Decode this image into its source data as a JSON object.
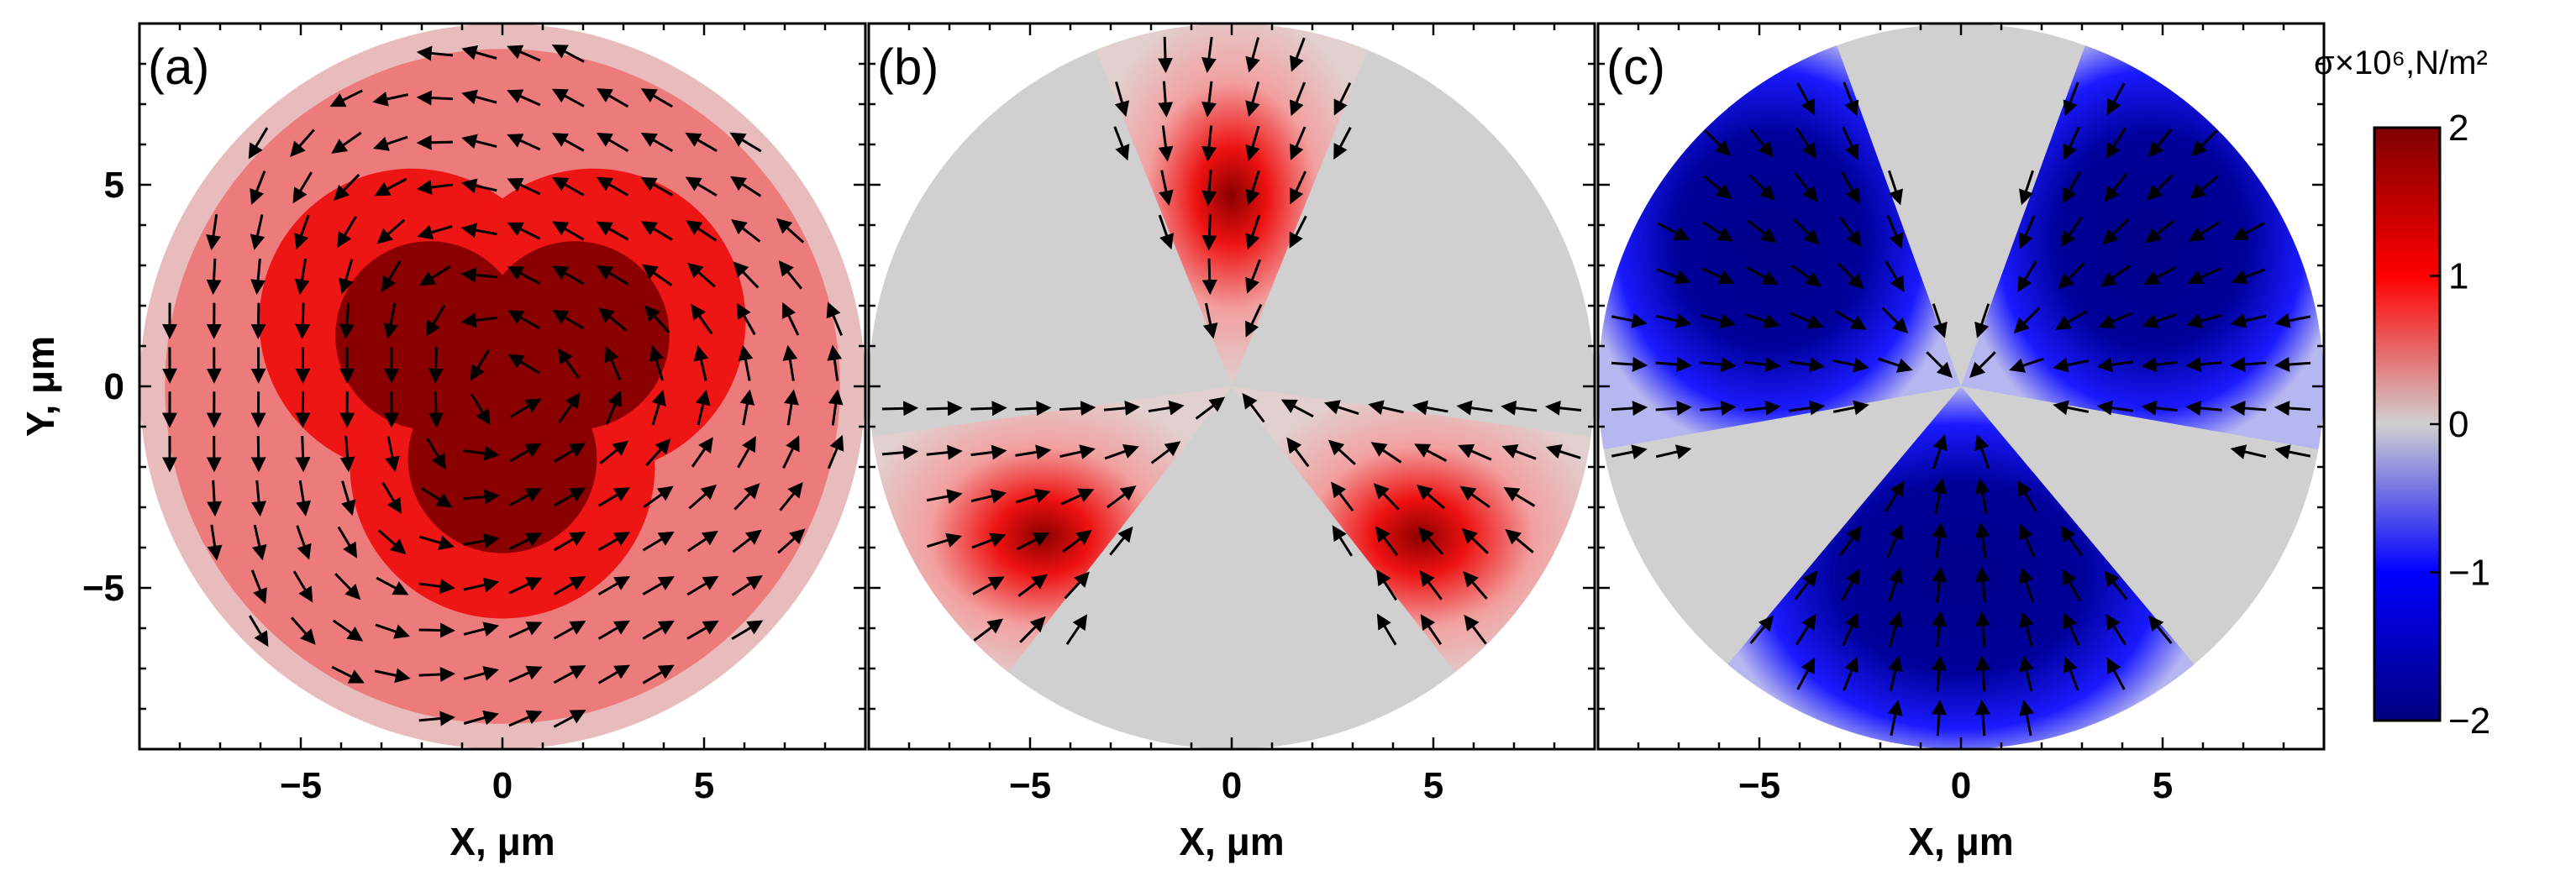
{
  "chart_data": {
    "type": "heatmap",
    "colorbar": {
      "label": "σ×10⁶,N/m²",
      "range": [
        -2,
        2
      ],
      "ticks": [
        2,
        1,
        0,
        -1,
        -2
      ],
      "tick_labels": [
        "2",
        "1",
        "0",
        "−1",
        "−2"
      ],
      "colors": {
        "min": "#00007f",
        "mid_low": "#0000ff",
        "zero": "#d0d0d0",
        "mid_high": "#ff0000",
        "max": "#7f0000"
      }
    },
    "panels": [
      {
        "label": "(a)",
        "xlabel": "X, μm",
        "ylabel": "Y, μm",
        "xlim": [
          -9,
          9
        ],
        "ylim": [
          -9,
          9
        ],
        "disk_radius": 9,
        "xticks": [
          -5,
          0,
          5
        ],
        "xtick_labels": [
          "−5",
          "0",
          "5"
        ],
        "yticks": [
          5,
          0,
          -5
        ],
        "ytick_labels": [
          "5",
          "0",
          "−5"
        ],
        "field": "positive tension with three-lobed maximum near the centre, decaying to ~0.3 at the rim",
        "peak_sigma": 2
      },
      {
        "label": "(b)",
        "xlabel": "X, μm",
        "xlim": [
          -9,
          9
        ],
        "ylim": [
          -9,
          9
        ],
        "disk_radius": 9,
        "xticks": [
          -5,
          0,
          5
        ],
        "xtick_labels": [
          "−5",
          "0",
          "5"
        ],
        "sector_directions_deg": [
          90,
          210,
          330
        ],
        "sector_half_width_deg": 22,
        "sector_sign": "positive",
        "peak_sigma": 2
      },
      {
        "label": "(c)",
        "xlabel": "X, μm",
        "xlim": [
          -9,
          9
        ],
        "ylim": [
          -9,
          9
        ],
        "disk_radius": 9,
        "xticks": [
          -5,
          0,
          5
        ],
        "xtick_labels": [
          "−5",
          "0",
          "5"
        ],
        "sector_directions_deg": [
          30,
          150,
          270
        ],
        "sector_half_width_deg": 40,
        "sector_sign": "negative",
        "peak_sigma": -2
      }
    ]
  }
}
